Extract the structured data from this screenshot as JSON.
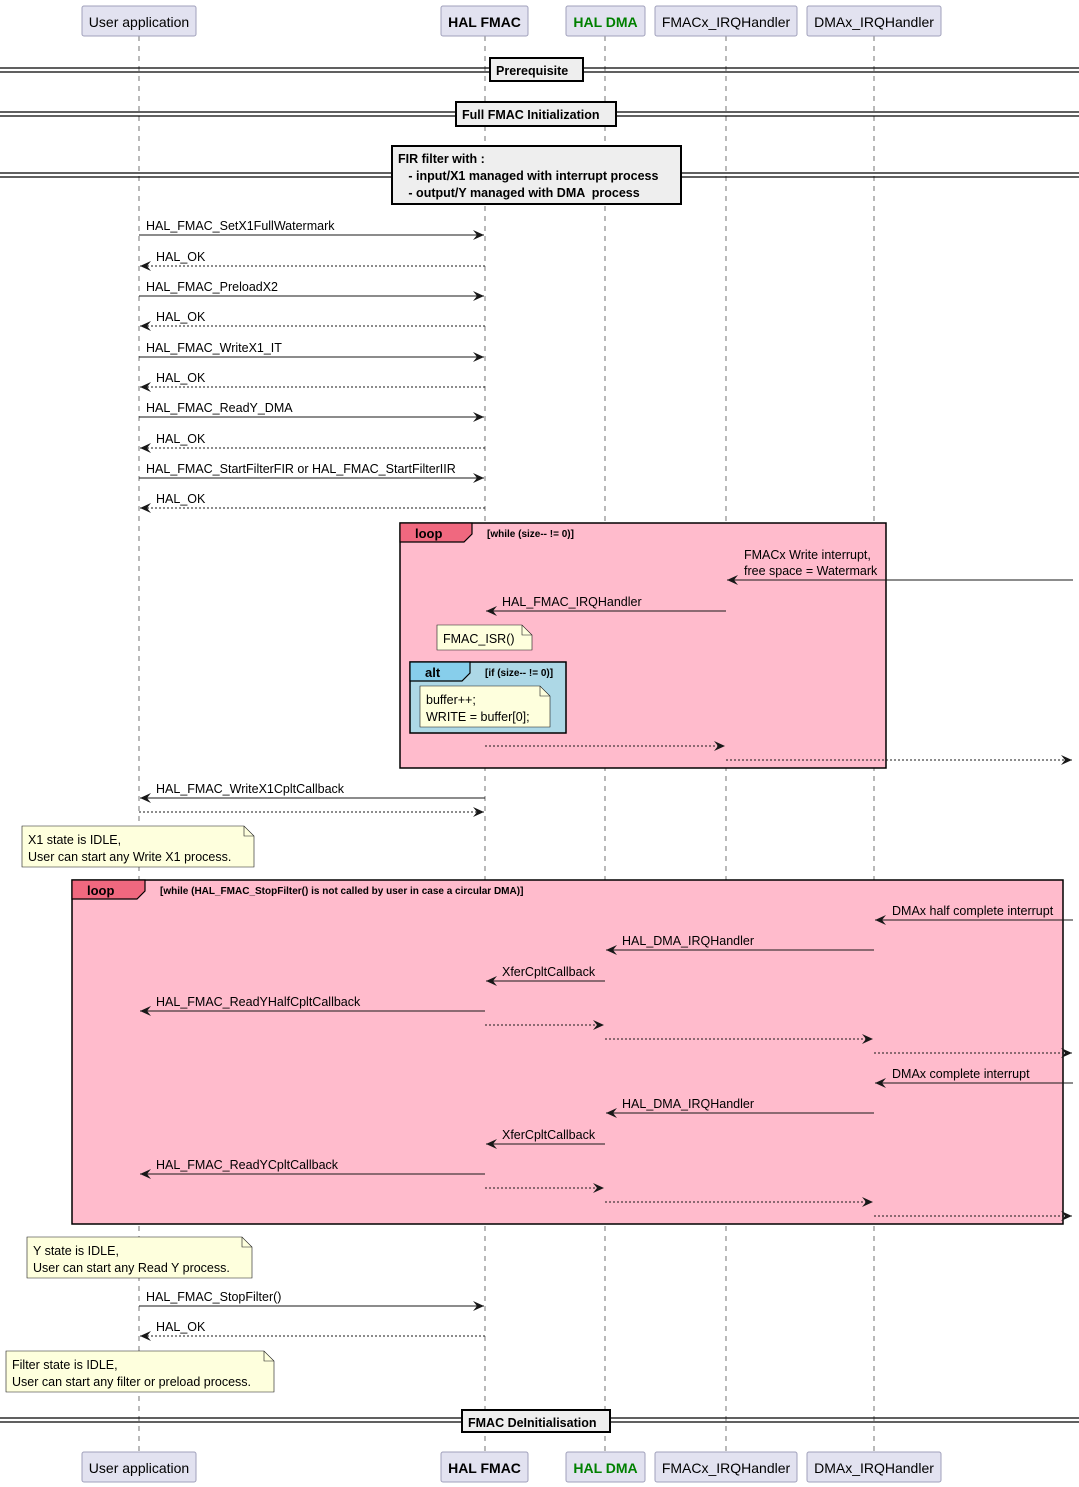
{
  "participants": [
    {
      "id": "user",
      "label": "User application",
      "bold": false,
      "color": "#000000"
    },
    {
      "id": "fmac",
      "label": "HAL FMAC",
      "bold": true,
      "color": "#000000"
    },
    {
      "id": "dma",
      "label": "HAL DMA",
      "bold": true,
      "color": "#008000"
    },
    {
      "id": "fmacirq",
      "label": "FMACx_IRQHandler",
      "bold": false,
      "color": "#000000"
    },
    {
      "id": "dmairq",
      "label": "DMAx_IRQHandler",
      "bold": false,
      "color": "#000000"
    }
  ],
  "dividers": [
    {
      "lines": [
        "Prerequisite"
      ]
    },
    {
      "lines": [
        "Full FMAC Initialization"
      ]
    },
    {
      "lines": [
        "FIR filter with :",
        "   - input/X1 managed with interrupt process",
        "   - output/Y managed with DMA  process"
      ]
    },
    {
      "lines": [
        "FMAC DeInitialisation"
      ]
    }
  ],
  "messages": [
    {
      "from": "user",
      "to": "fmac",
      "label": "HAL_FMAC_SetX1FullWatermark",
      "style": "solid"
    },
    {
      "from": "fmac",
      "to": "user",
      "label": "HAL_OK",
      "style": "dashed"
    },
    {
      "from": "user",
      "to": "fmac",
      "label": "HAL_FMAC_PreloadX2",
      "style": "solid"
    },
    {
      "from": "fmac",
      "to": "user",
      "label": "HAL_OK",
      "style": "dashed"
    },
    {
      "from": "user",
      "to": "fmac",
      "label": "HAL_FMAC_WriteX1_IT",
      "style": "solid"
    },
    {
      "from": "fmac",
      "to": "user",
      "label": "HAL_OK",
      "style": "dashed"
    },
    {
      "from": "user",
      "to": "fmac",
      "label": "HAL_FMAC_ReadY_DMA",
      "style": "solid"
    },
    {
      "from": "fmac",
      "to": "user",
      "label": "HAL_OK",
      "style": "dashed"
    },
    {
      "from": "user",
      "to": "fmac",
      "label": "HAL_FMAC_StartFilterFIR or HAL_FMAC_StartFilterIIR",
      "style": "solid"
    },
    {
      "from": "fmac",
      "to": "user",
      "label": "HAL_OK",
      "style": "dashed"
    },
    {
      "from": "external",
      "to": "fmacirq",
      "label": "FMACx Write interrupt,\nfree space = Watermark",
      "style": "solid"
    },
    {
      "from": "fmacirq",
      "to": "fmac",
      "label": "HAL_FMAC_IRQHandler",
      "style": "solid"
    },
    {
      "from": "fmac",
      "to": "fmacirq",
      "label": "",
      "style": "dashed"
    },
    {
      "from": "fmacirq",
      "to": "external",
      "label": "",
      "style": "dashed"
    },
    {
      "from": "fmac",
      "to": "user",
      "label": "HAL_FMAC_WriteX1CpltCallback",
      "style": "solid"
    },
    {
      "from": "user",
      "to": "fmac",
      "label": "",
      "style": "dashed"
    },
    {
      "from": "external",
      "to": "dmairq",
      "label": "DMAx half complete interrupt",
      "style": "solid"
    },
    {
      "from": "dmairq",
      "to": "dma",
      "label": "HAL_DMA_IRQHandler",
      "style": "solid"
    },
    {
      "from": "dma",
      "to": "fmac",
      "label": "XferCpltCallback",
      "style": "solid"
    },
    {
      "from": "fmac",
      "to": "user",
      "label": "HAL_FMAC_ReadYHalfCpltCallback",
      "style": "solid"
    },
    {
      "from": "fmac",
      "to": "dma",
      "label": "",
      "style": "dashed"
    },
    {
      "from": "dma",
      "to": "dmairq",
      "label": "",
      "style": "dashed"
    },
    {
      "from": "dmairq",
      "to": "external",
      "label": "",
      "style": "dashed"
    },
    {
      "from": "external",
      "to": "dmairq",
      "label": "DMAx complete interrupt",
      "style": "solid"
    },
    {
      "from": "dmairq",
      "to": "dma",
      "label": "HAL_DMA_IRQHandler",
      "style": "solid"
    },
    {
      "from": "dma",
      "to": "fmac",
      "label": "XferCpltCallback",
      "style": "solid"
    },
    {
      "from": "fmac",
      "to": "user",
      "label": "HAL_FMAC_ReadYCpltCallback",
      "style": "solid"
    },
    {
      "from": "fmac",
      "to": "dma",
      "label": "",
      "style": "dashed"
    },
    {
      "from": "dma",
      "to": "dmairq",
      "label": "",
      "style": "dashed"
    },
    {
      "from": "dmairq",
      "to": "external",
      "label": "",
      "style": "dashed"
    },
    {
      "from": "user",
      "to": "fmac",
      "label": "HAL_FMAC_StopFilter()",
      "style": "solid"
    },
    {
      "from": "fmac",
      "to": "user",
      "label": "HAL_OK",
      "style": "dashed"
    }
  ],
  "notes": [
    {
      "lines": [
        "FMAC_ISR()"
      ]
    },
    {
      "lines": [
        "buffer++;",
        "WRITE = buffer[0];"
      ]
    },
    {
      "lines": [
        "X1 state is IDLE,",
        "User can start any Write X1 process."
      ]
    },
    {
      "lines": [
        "Y state is IDLE,",
        "User can start any Read Y process."
      ]
    },
    {
      "lines": [
        "Filter state is IDLE,",
        "User can start any filter or preload process."
      ]
    }
  ],
  "fragments": [
    {
      "kind": "loop",
      "condition": "[while (size-- != 0)]",
      "color": "#FFBBCC",
      "tag_color": "#F0687F"
    },
    {
      "kind": "alt",
      "condition": "[if (size-- != 0)]",
      "color": "#ADD8E6",
      "tag_color": "#87CEEB"
    },
    {
      "kind": "loop",
      "condition": "[while (HAL_FMAC_StopFilter() is not called by user in case a circular DMA)]",
      "color": "#FFBBCC",
      "tag_color": "#F0687F"
    }
  ],
  "colors": {
    "participant_bg": "#E2E2F0",
    "participant_border": "#A0A0BB",
    "note_bg": "#FEFFDD",
    "divider_bg": "#EEEEEE"
  }
}
